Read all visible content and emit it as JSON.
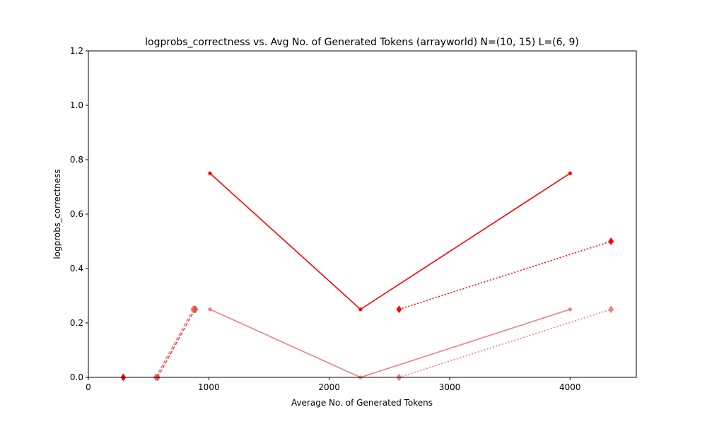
{
  "chart_data": {
    "type": "line",
    "title": "logprobs_correctness vs. Avg No. of Generated Tokens (arrayworld) N=(10, 15) L=(6, 9)",
    "xlabel": "Average No. of Generated Tokens",
    "ylabel": "logprobs_correctness",
    "xlim": [
      0,
      4550
    ],
    "ylim": [
      0,
      1.2
    ],
    "xticks": [
      0,
      1000,
      2000,
      3000,
      4000
    ],
    "yticks": [
      0.0,
      0.2,
      0.4,
      0.6,
      0.8,
      1.0,
      1.2
    ],
    "grid": false,
    "series": [
      {
        "color": "#ff0000",
        "line_style": "solid",
        "marker": "circle",
        "x": [
          1010,
          2260,
          4000
        ],
        "y": [
          0.75,
          0.25,
          0.75
        ]
      },
      {
        "color": "#f08080",
        "line_style": "solid",
        "marker": "circle",
        "x": [
          1010,
          2260,
          4000
        ],
        "y": [
          0.25,
          0.0,
          0.25
        ]
      },
      {
        "color": "#ff0000",
        "line_style": "dotted",
        "marker": "diamond",
        "x": [
          2580,
          4340
        ],
        "y": [
          0.25,
          0.5
        ]
      },
      {
        "color": "#f08080",
        "line_style": "dotted",
        "marker": "diamond",
        "x": [
          2580,
          4340
        ],
        "y": [
          0.0,
          0.25
        ]
      },
      {
        "color": "#f08080",
        "line_style": "dashed",
        "marker": "diamond",
        "x": [
          560,
          870,
          880,
          890
        ],
        "y": [
          0.0,
          0.25,
          0.25,
          0.25
        ]
      },
      {
        "color": "#e05050",
        "line_style": "dashed",
        "marker": "diamond",
        "x": [
          575,
          885
        ],
        "y": [
          0.0,
          0.25
        ]
      },
      {
        "color": "#ff0000",
        "line_style": "none",
        "marker": "diamond",
        "x": [
          290
        ],
        "y": [
          0.0
        ]
      }
    ]
  }
}
